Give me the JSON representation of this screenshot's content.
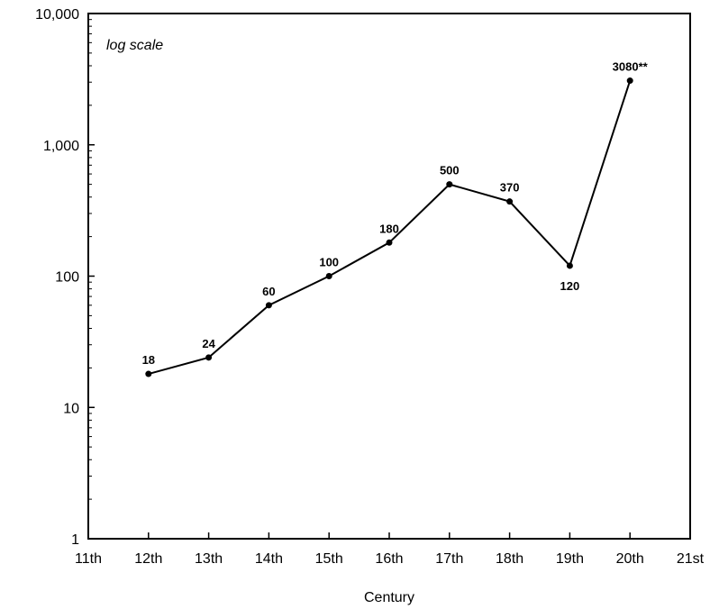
{
  "chart_data": {
    "type": "line",
    "title": "",
    "xlabel": "Century",
    "ylabel": "",
    "annotation": "log scale",
    "y_scale": "log",
    "ylim": [
      1,
      10000
    ],
    "y_ticks": [
      {
        "value": 1,
        "label": "1"
      },
      {
        "value": 10,
        "label": "10"
      },
      {
        "value": 100,
        "label": "100"
      },
      {
        "value": 1000,
        "label": "1,000"
      },
      {
        "value": 10000,
        "label": "10,000"
      }
    ],
    "x_ticks": [
      "11th",
      "12th",
      "13th",
      "14th",
      "15th",
      "16th",
      "17th",
      "18th",
      "19th",
      "20th",
      "21st"
    ],
    "grid": false,
    "series": [
      {
        "points": [
          {
            "x": "12th",
            "y": 18,
            "label": "18",
            "label_pos": "above"
          },
          {
            "x": "13th",
            "y": 24,
            "label": "24",
            "label_pos": "above"
          },
          {
            "x": "14th",
            "y": 60,
            "label": "60",
            "label_pos": "above"
          },
          {
            "x": "15th",
            "y": 100,
            "label": "100",
            "label_pos": "above"
          },
          {
            "x": "16th",
            "y": 180,
            "label": "180",
            "label_pos": "above"
          },
          {
            "x": "17th",
            "y": 500,
            "label": "500",
            "label_pos": "above"
          },
          {
            "x": "18th",
            "y": 370,
            "label": "370",
            "label_pos": "above"
          },
          {
            "x": "19th",
            "y": 120,
            "label": "120",
            "label_pos": "below"
          },
          {
            "x": "20th",
            "y": 3080,
            "label": "3080**",
            "label_pos": "above"
          }
        ]
      }
    ]
  }
}
